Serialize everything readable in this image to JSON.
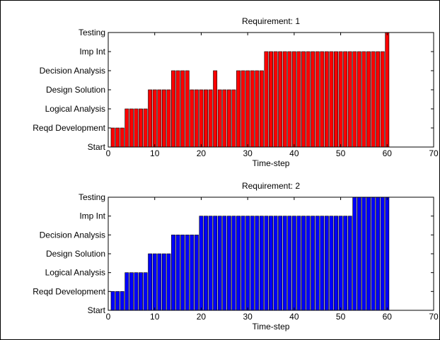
{
  "chart_data": [
    {
      "type": "bar",
      "title": "Requirement: 1",
      "xlabel": "Time-step",
      "ylabel": "",
      "xlim": [
        0,
        70
      ],
      "xticks": [
        "0",
        "10",
        "20",
        "30",
        "40",
        "50",
        "60",
        "70"
      ],
      "yticks": [
        "Start",
        "Reqd Development",
        "Logical Analysis",
        "Design Solution",
        "Decision Analysis",
        "Imp Int",
        "Testing"
      ],
      "ylim": [
        0,
        6
      ],
      "bar_color": "#ff0000",
      "x": [
        1,
        2,
        3,
        4,
        5,
        6,
        7,
        8,
        9,
        10,
        11,
        12,
        13,
        14,
        15,
        16,
        17,
        18,
        19,
        20,
        21,
        22,
        23,
        24,
        25,
        26,
        27,
        28,
        29,
        30,
        31,
        32,
        33,
        34,
        35,
        36,
        37,
        38,
        39,
        40,
        41,
        42,
        43,
        44,
        45,
        46,
        47,
        48,
        49,
        50,
        51,
        52,
        53,
        54,
        55,
        56,
        57,
        58,
        59,
        60
      ],
      "values": [
        1,
        1,
        1,
        2,
        2,
        2,
        2,
        2,
        3,
        3,
        3,
        3,
        3,
        4,
        4,
        4,
        4,
        3,
        3,
        3,
        3,
        3,
        4,
        3,
        3,
        3,
        3,
        4,
        4,
        4,
        4,
        4,
        4,
        5,
        5,
        5,
        5,
        5,
        5,
        5,
        5,
        5,
        5,
        5,
        5,
        5,
        5,
        5,
        5,
        5,
        5,
        5,
        5,
        5,
        5,
        5,
        5,
        5,
        5,
        6
      ]
    },
    {
      "type": "bar",
      "title": "Requirement: 2",
      "xlabel": "Time-step",
      "ylabel": "",
      "xlim": [
        0,
        70
      ],
      "xticks": [
        "0",
        "10",
        "20",
        "30",
        "40",
        "50",
        "60",
        "70"
      ],
      "yticks": [
        "Start",
        "Reqd Development",
        "Logical Analysis",
        "Design Solution",
        "Decision Analysis",
        "Imp Int",
        "Testing"
      ],
      "ylim": [
        0,
        6
      ],
      "bar_color": "#0000ff",
      "x": [
        1,
        2,
        3,
        4,
        5,
        6,
        7,
        8,
        9,
        10,
        11,
        12,
        13,
        14,
        15,
        16,
        17,
        18,
        19,
        20,
        21,
        22,
        23,
        24,
        25,
        26,
        27,
        28,
        29,
        30,
        31,
        32,
        33,
        34,
        35,
        36,
        37,
        38,
        39,
        40,
        41,
        42,
        43,
        44,
        45,
        46,
        47,
        48,
        49,
        50,
        51,
        52,
        53,
        54,
        55,
        56,
        57,
        58,
        59,
        60
      ],
      "values": [
        1,
        1,
        1,
        2,
        2,
        2,
        2,
        2,
        3,
        3,
        3,
        3,
        3,
        4,
        4,
        4,
        4,
        4,
        4,
        5,
        5,
        5,
        5,
        5,
        5,
        5,
        5,
        5,
        5,
        5,
        5,
        5,
        5,
        5,
        5,
        5,
        5,
        5,
        5,
        5,
        5,
        5,
        5,
        5,
        5,
        5,
        5,
        5,
        5,
        5,
        5,
        5,
        6,
        6,
        6,
        6,
        6,
        6,
        6,
        6
      ]
    }
  ]
}
